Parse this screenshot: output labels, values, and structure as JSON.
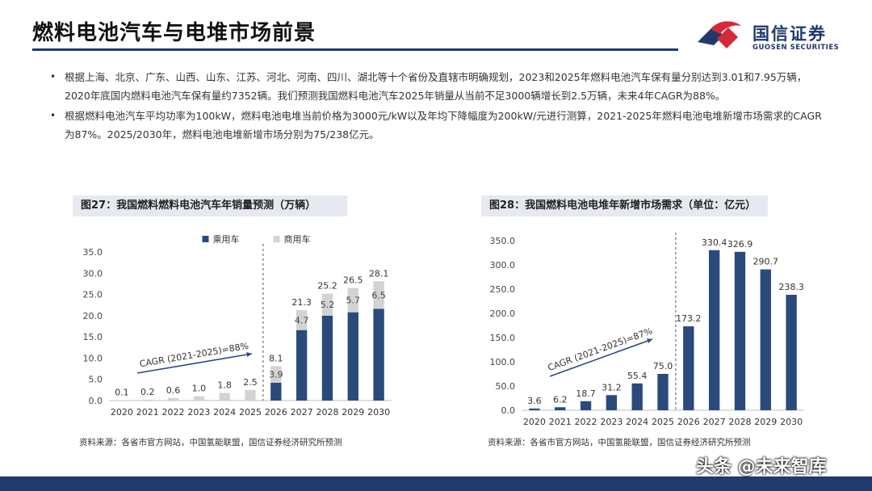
{
  "page": {
    "title": "燃料电池汽车与电堆市场前景",
    "logo_cn": "国信证券",
    "logo_en": "GUOSEN SECURITIES",
    "bullets": [
      "根据上海、北京、广东、山西、山东、江苏、河北、河南、四川、湖北等十个省份及直辖市明确规划，2023和2025年燃料电池汽车保有量分别达到3.01和7.95万辆，2020年底国内燃料电池汽车保有量约7352辆。我们预测我国燃料电池汽车2025年销量从当前不足3000辆增长到2.5万辆，未来4年CAGR为88%。",
      "根据燃料电池汽车平均功率为100kW，燃料电池电堆当前价格为3000元/kW以及年均下降幅度为200kW/元进行测算，2021-2025年燃料电池电堆新增市场需求的CAGR为87%。2025/2030年，燃料电池电堆新增市场分别为75/238亿元。"
    ],
    "bullet_symbol": "•",
    "watermark": "头条 @未来智库",
    "colors": {
      "brand": "#1f3a6b",
      "logo_red": "#d7283a",
      "passenger": "#2b4a7c",
      "commercial": "#d3d3d3"
    }
  },
  "charts": [
    {
      "caption": "图27：我国燃料燃料电池汽车年销量预测（万辆）",
      "source": "资料来源：各省市官方网站，中国氢能联盟，国信证券经济研究所预测",
      "annotation": "CAGR (2021-2025)=88%"
    },
    {
      "caption": "图28：我国燃料电池电堆年新增市场需求（单位：亿元）",
      "source": "资料来源：各省市官方网站，中国氢能联盟，国信证券经济研究所预测",
      "annotation": "CAGR (2021-2025)=87%"
    }
  ],
  "chart_data": [
    {
      "type": "bar",
      "stacked": true,
      "title": "图27：我国燃料燃料电池汽车年销量预测（万辆）",
      "categories": [
        "2020",
        "2021",
        "2022",
        "2023",
        "2024",
        "2025",
        "2026",
        "2027",
        "2028",
        "2029",
        "2030"
      ],
      "series": [
        {
          "name": "乘用车",
          "color": "#2b4a7c",
          "values": [
            0,
            0,
            0,
            0,
            0,
            0,
            4.2,
            16.6,
            20.0,
            20.8,
            21.6
          ]
        },
        {
          "name": "商用车",
          "color": "#d3d3d3",
          "values": [
            0.1,
            0.2,
            0.6,
            1.0,
            1.8,
            2.5,
            3.9,
            4.7,
            5.2,
            5.7,
            6.5
          ]
        }
      ],
      "totals": [
        0.1,
        0.2,
        0.6,
        1.0,
        1.8,
        2.5,
        8.1,
        21.3,
        25.2,
        26.5,
        28.1
      ],
      "total_labels": [
        "0.1",
        "0.2",
        "0.6",
        "1.0",
        "1.8",
        "2.5",
        "8.1",
        "21.3",
        "25.2",
        "26.5",
        "28.1"
      ],
      "segment_labels": [
        "",
        "",
        "",
        "",
        "",
        "",
        "3.9",
        "4.7",
        "5.2",
        "5.7",
        "6.5"
      ],
      "ylim": [
        0,
        35
      ],
      "yticks": [
        "0.0",
        "5.0",
        "10.0",
        "15.0",
        "20.0",
        "25.0",
        "30.0",
        "35.0"
      ],
      "divider_after": "2025",
      "legend_position": "top",
      "annotation": "CAGR (2021-2025)=88%"
    },
    {
      "type": "bar",
      "title": "图28：我国燃料电池电堆年新增市场需求（单位：亿元）",
      "categories": [
        "2020",
        "2021",
        "2022",
        "2023",
        "2024",
        "2025",
        "2026",
        "2027",
        "2028",
        "2029",
        "2030"
      ],
      "values": [
        3.6,
        6.2,
        18.7,
        31.2,
        55.4,
        75.0,
        173.2,
        330.4,
        326.9,
        290.7,
        238.3
      ],
      "value_labels": [
        "3.6",
        "6.2",
        "18.7",
        "31.2",
        "55.4",
        "75.0",
        "173.2",
        "330.4",
        "326.9",
        "290.7",
        "238.3"
      ],
      "color": "#2b4a7c",
      "ylim": [
        0,
        350
      ],
      "yticks": [
        "0.0",
        "50.0",
        "100.0",
        "150.0",
        "200.0",
        "250.0",
        "300.0",
        "350.0"
      ],
      "divider_after": "2025",
      "annotation": "CAGR (2021-2025)=87%"
    }
  ]
}
